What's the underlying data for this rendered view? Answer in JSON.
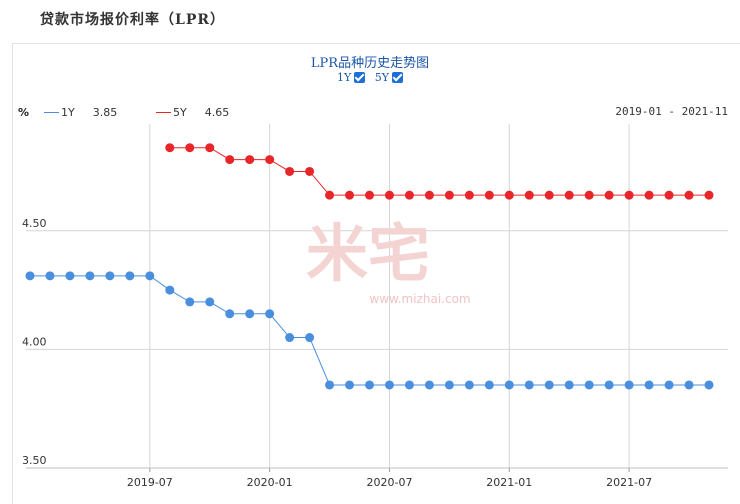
{
  "page": {
    "title": "贷款市场报价利率（LPR）"
  },
  "chart_header": {
    "title": "LPR品种历史走势图",
    "toggles": [
      {
        "label": "1Y",
        "checked": true
      },
      {
        "label": "5Y",
        "checked": true
      }
    ],
    "y_unit": "%",
    "date_range": "2019-01 - 2021-11"
  },
  "legend": [
    {
      "name": "1Y",
      "value": "3.85",
      "color": "#4a8fde"
    },
    {
      "name": "5Y",
      "value": "4.65",
      "color": "#e8262a"
    }
  ],
  "watermark": {
    "brand": "米宅",
    "url": "www.mizhai.com",
    "color": "#f4d3d3"
  },
  "chart_data": {
    "type": "line",
    "xlabel": "",
    "ylabel": "%",
    "ylim": [
      3.5,
      4.95
    ],
    "yticks": [
      "3.50",
      "4.00",
      "4.50"
    ],
    "xlim": [
      "2019-01",
      "2021-11"
    ],
    "xticks": [
      "2019-07",
      "2020-01",
      "2020-07",
      "2021-01",
      "2021-07"
    ],
    "grid": true,
    "series": [
      {
        "name": "1Y",
        "color": "#4a8fde",
        "x": [
          "2019-01",
          "2019-02",
          "2019-03",
          "2019-04",
          "2019-05",
          "2019-06",
          "2019-07",
          "2019-08",
          "2019-09",
          "2019-10",
          "2019-11",
          "2019-12",
          "2020-01",
          "2020-02",
          "2020-03",
          "2020-04",
          "2020-05",
          "2020-06",
          "2020-07",
          "2020-08",
          "2020-09",
          "2020-10",
          "2020-11",
          "2020-12",
          "2021-01",
          "2021-02",
          "2021-03",
          "2021-04",
          "2021-05",
          "2021-06",
          "2021-07",
          "2021-08",
          "2021-09",
          "2021-10",
          "2021-11"
        ],
        "values": [
          4.31,
          4.31,
          4.31,
          4.31,
          4.31,
          4.31,
          4.31,
          4.25,
          4.2,
          4.2,
          4.15,
          4.15,
          4.15,
          4.05,
          4.05,
          3.85,
          3.85,
          3.85,
          3.85,
          3.85,
          3.85,
          3.85,
          3.85,
          3.85,
          3.85,
          3.85,
          3.85,
          3.85,
          3.85,
          3.85,
          3.85,
          3.85,
          3.85,
          3.85,
          3.85
        ]
      },
      {
        "name": "5Y",
        "color": "#e8262a",
        "x": [
          "2019-08",
          "2019-09",
          "2019-10",
          "2019-11",
          "2019-12",
          "2020-01",
          "2020-02",
          "2020-03",
          "2020-04",
          "2020-05",
          "2020-06",
          "2020-07",
          "2020-08",
          "2020-09",
          "2020-10",
          "2020-11",
          "2020-12",
          "2021-01",
          "2021-02",
          "2021-03",
          "2021-04",
          "2021-05",
          "2021-06",
          "2021-07",
          "2021-08",
          "2021-09",
          "2021-10",
          "2021-11"
        ],
        "values": [
          4.85,
          4.85,
          4.85,
          4.8,
          4.8,
          4.8,
          4.75,
          4.75,
          4.65,
          4.65,
          4.65,
          4.65,
          4.65,
          4.65,
          4.65,
          4.65,
          4.65,
          4.65,
          4.65,
          4.65,
          4.65,
          4.65,
          4.65,
          4.65,
          4.65,
          4.65,
          4.65,
          4.65
        ]
      }
    ]
  }
}
